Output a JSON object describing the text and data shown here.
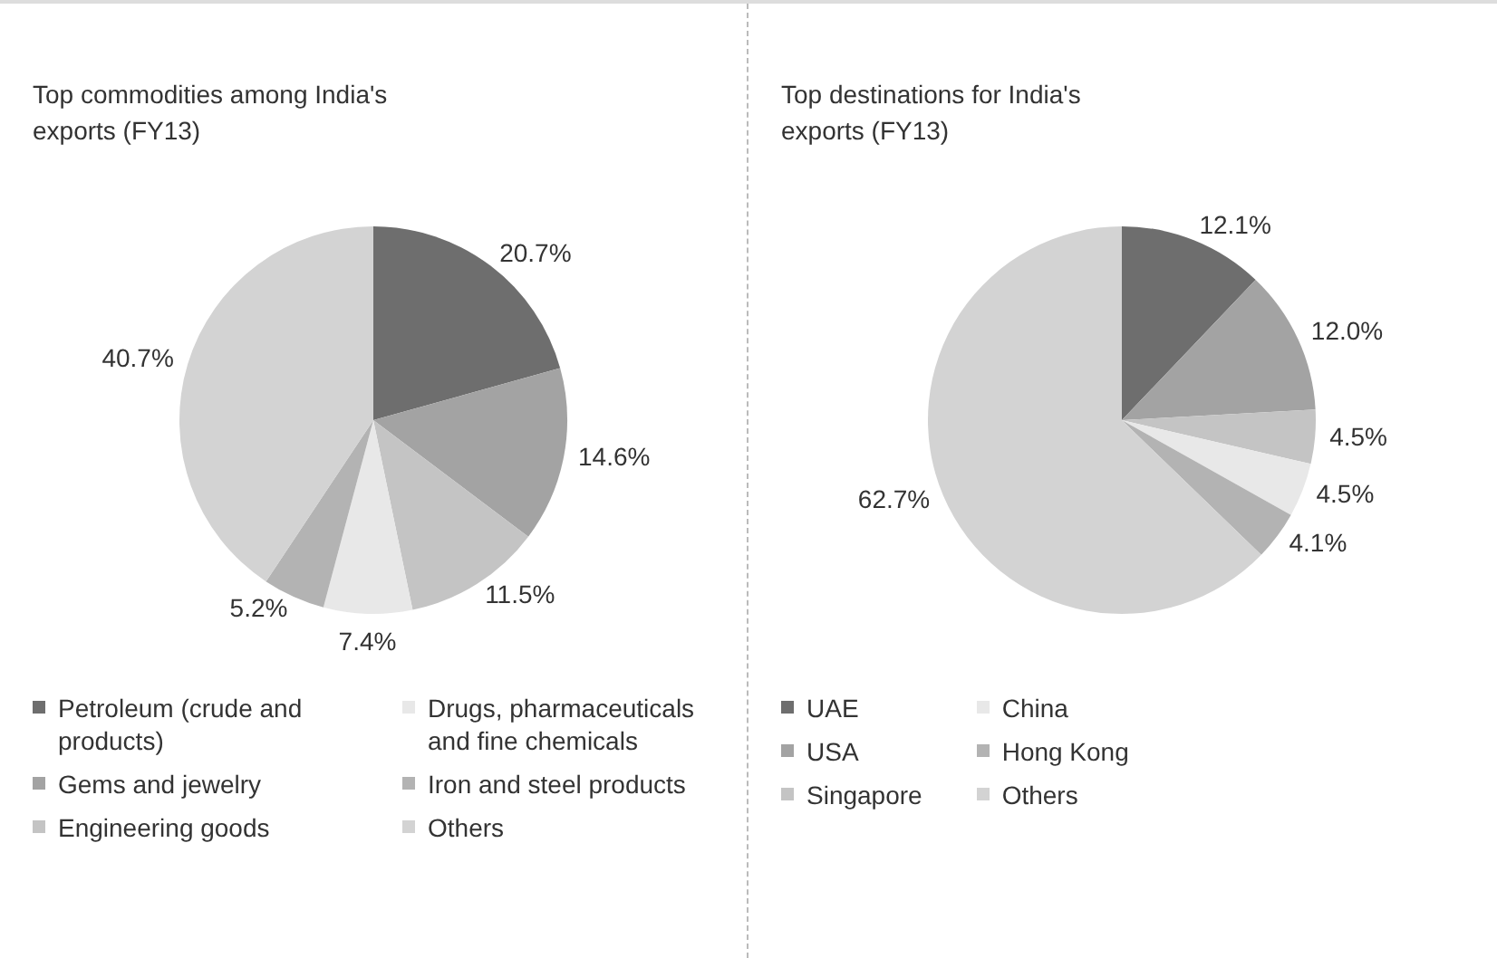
{
  "chart_data": [
    {
      "type": "pie",
      "title": "Top commodities among India's exports (FY13)",
      "categories": [
        "Petroleum (crude and products)",
        "Gems and jewelry",
        "Engineering goods",
        "Drugs, pharmaceuticals and fine chemicals",
        "Iron and steel products",
        "Others"
      ],
      "values": [
        20.7,
        14.6,
        11.5,
        7.4,
        5.2,
        40.7
      ],
      "value_labels": [
        "20.7%",
        "14.6%",
        "11.5%",
        "7.4%",
        "5.2%",
        "40.7%"
      ],
      "colors": [
        "#6e6e6e",
        "#a3a3a3",
        "#c4c4c4",
        "#e8e8e8",
        "#b3b3b3",
        "#d3d3d3"
      ],
      "legend": "bottom"
    },
    {
      "type": "pie",
      "title": "Top destinations for India's exports (FY13)",
      "categories": [
        "UAE",
        "USA",
        "Singapore",
        "China",
        "Hong Kong",
        "Others"
      ],
      "values": [
        12.1,
        12.0,
        4.5,
        4.5,
        4.1,
        62.7
      ],
      "value_labels": [
        "12.1%",
        "12.0%",
        "4.5%",
        "4.5%",
        "4.1%",
        "62.7%"
      ],
      "colors": [
        "#6e6e6e",
        "#a3a3a3",
        "#c4c4c4",
        "#e8e8e8",
        "#b3b3b3",
        "#d3d3d3"
      ],
      "legend": "bottom"
    }
  ]
}
